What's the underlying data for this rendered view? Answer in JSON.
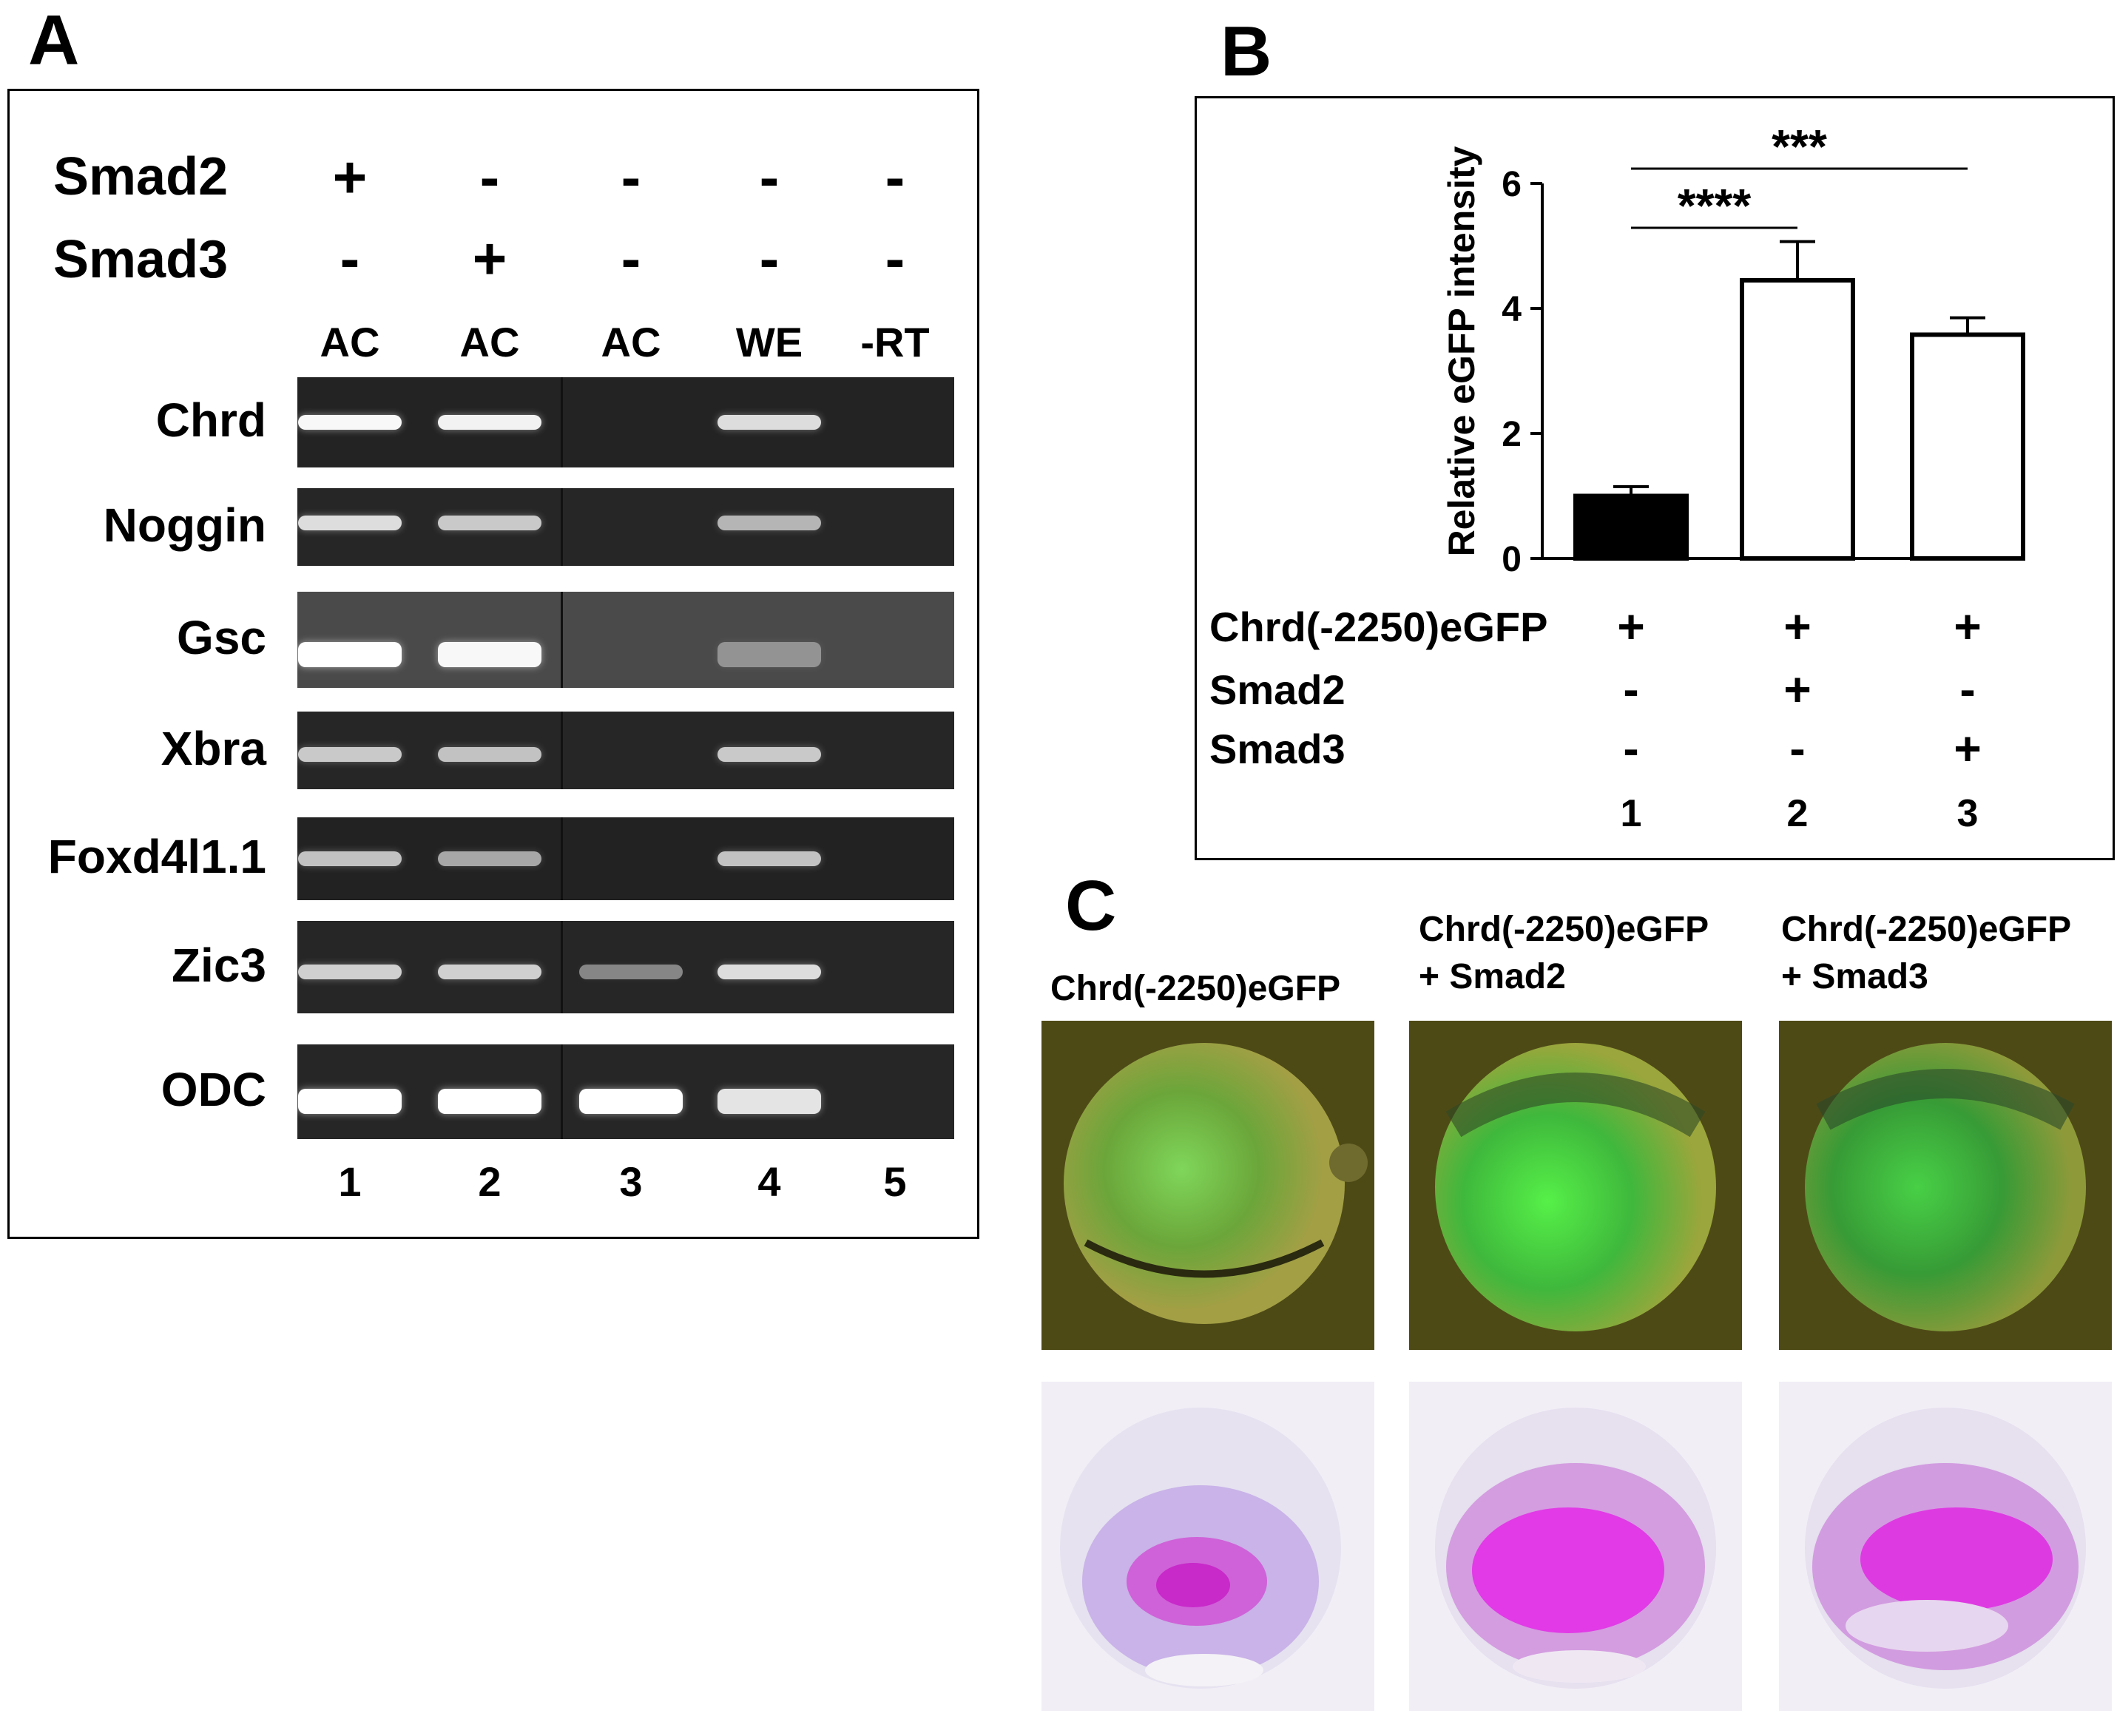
{
  "panel_a": {
    "letter": "A",
    "treatments": [
      {
        "label": "Smad2",
        "signs": [
          "+",
          "-",
          "-",
          "-",
          "-"
        ]
      },
      {
        "label": "Smad3",
        "signs": [
          "-",
          "+",
          "-",
          "-",
          "-"
        ]
      }
    ],
    "lane_headers": [
      "AC",
      "AC",
      "AC",
      "WE",
      "-RT"
    ],
    "genes": [
      "Chrd",
      "Noggin",
      "Gsc",
      "Xbra",
      "Foxd4l1.1",
      "Zic3",
      "ODC"
    ],
    "lane_numbers": [
      "1",
      "2",
      "3",
      "4",
      "5"
    ]
  },
  "panel_b": {
    "letter": "B",
    "chart_data": {
      "type": "bar",
      "categories": [
        "1",
        "2",
        "3"
      ],
      "values": [
        1.0,
        4.45,
        3.58
      ],
      "error": [
        0.15,
        0.62,
        0.27
      ],
      "bar_colors": [
        "#000000",
        "#ffffff",
        "#ffffff"
      ],
      "ylabel": "Relative eGFP intensity",
      "ylim": [
        0,
        6
      ],
      "yticks": [
        "0",
        "2",
        "4",
        "6"
      ],
      "significance": [
        {
          "from": "1",
          "to": "2",
          "label": "****"
        },
        {
          "from": "1",
          "to": "3",
          "label": "***"
        }
      ]
    },
    "rows": [
      {
        "label": "Chrd(-2250)eGFP",
        "signs": [
          "+",
          "+",
          "+"
        ]
      },
      {
        "label": "Smad2",
        "signs": [
          "-",
          "+",
          "-"
        ]
      },
      {
        "label": "Smad3",
        "signs": [
          "-",
          "-",
          "+"
        ]
      }
    ],
    "lane_numbers": [
      "1",
      "2",
      "3"
    ]
  },
  "panel_c": {
    "letter": "C",
    "captions": [
      {
        "line1": "Chrd(-2250)eGFP",
        "line2": ""
      },
      {
        "line1": "Chrd(-2250)eGFP",
        "line2": "+ Smad2"
      },
      {
        "line1": "Chrd(-2250)eGFP",
        "line2": "+ Smad3"
      }
    ]
  }
}
